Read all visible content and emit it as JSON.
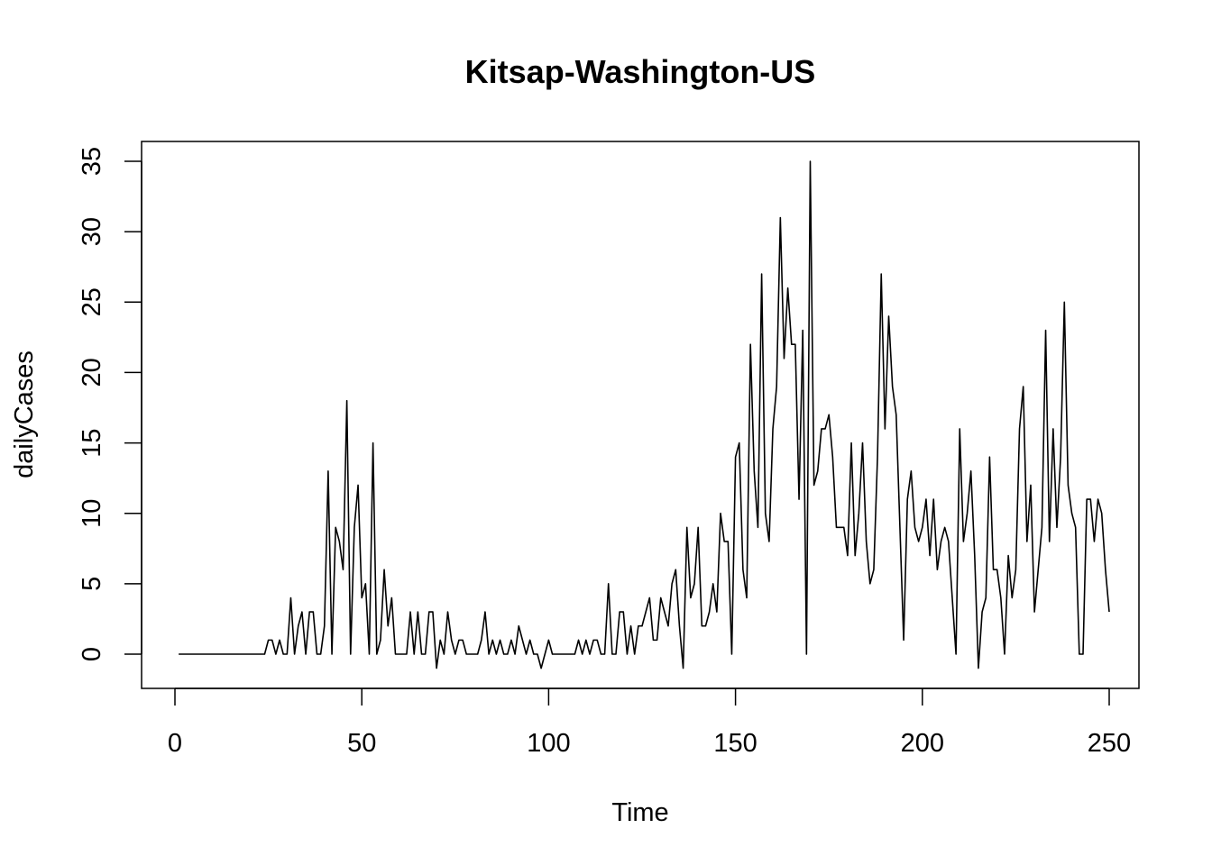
{
  "chart_data": {
    "type": "line",
    "title": "Kitsap-Washington-US",
    "xlabel": "Time",
    "ylabel": "dailyCases",
    "xlim": [
      0,
      250
    ],
    "ylim": [
      -1,
      35
    ],
    "x_ticks": [
      0,
      50,
      100,
      150,
      200,
      250
    ],
    "x_tick_labels": [
      "0",
      "50",
      "100",
      "150",
      "200",
      "250"
    ],
    "y_ticks": [
      0,
      5,
      10,
      15,
      20,
      25,
      30,
      35
    ],
    "y_tick_labels": [
      "0",
      "5",
      "10",
      "15",
      "20",
      "25",
      "30",
      "35"
    ],
    "grid": false,
    "legend": "none",
    "line_color": "#000000",
    "x_start": 1,
    "series": [
      {
        "values": [
          0,
          0,
          0,
          0,
          0,
          0,
          0,
          0,
          0,
          0,
          0,
          0,
          0,
          0,
          0,
          0,
          0,
          0,
          0,
          0,
          0,
          0,
          0,
          0,
          1,
          1,
          0,
          1,
          0,
          0,
          4,
          0,
          2,
          3,
          0,
          3,
          3,
          0,
          0,
          2,
          13,
          0,
          9,
          8,
          6,
          18,
          0,
          9,
          12,
          4,
          5,
          0,
          15,
          0,
          1,
          6,
          2,
          4,
          0,
          0,
          0,
          0,
          3,
          0,
          3,
          0,
          0,
          3,
          3,
          -1,
          1,
          0,
          3,
          1,
          0,
          1,
          1,
          0,
          0,
          0,
          0,
          1,
          3,
          0,
          1,
          0,
          1,
          0,
          0,
          1,
          0,
          2,
          1,
          0,
          1,
          0,
          0,
          -1,
          0,
          1,
          0,
          0,
          0,
          0,
          0,
          0,
          0,
          1,
          0,
          1,
          0,
          1,
          1,
          0,
          0,
          5,
          0,
          0,
          3,
          3,
          0,
          2,
          0,
          2,
          2,
          3,
          4,
          1,
          1,
          4,
          3,
          2,
          5,
          6,
          2,
          -1,
          9,
          4,
          5,
          9,
          2,
          2,
          3,
          5,
          3,
          10,
          8,
          8,
          0,
          14,
          15,
          6,
          4,
          22,
          13,
          9,
          27,
          10,
          8,
          16,
          19,
          31,
          21,
          26,
          22,
          22,
          11,
          23,
          0,
          35,
          12,
          13,
          16,
          16,
          17,
          14,
          9,
          9,
          9,
          7,
          15,
          7,
          10,
          15,
          8,
          5,
          6,
          14,
          27,
          16,
          24,
          19,
          17,
          9,
          1,
          11,
          13,
          9,
          8,
          9,
          11,
          7,
          11,
          6,
          8,
          9,
          8,
          4,
          0,
          16,
          8,
          10,
          13,
          7,
          -1,
          3,
          4,
          14,
          6,
          6,
          4,
          0,
          7,
          4,
          6,
          16,
          19,
          8,
          12,
          3,
          6,
          9,
          23,
          8,
          16,
          9,
          14,
          25,
          12,
          10,
          9,
          0,
          0,
          11,
          11,
          8,
          11,
          10,
          6,
          3
        ]
      }
    ]
  }
}
